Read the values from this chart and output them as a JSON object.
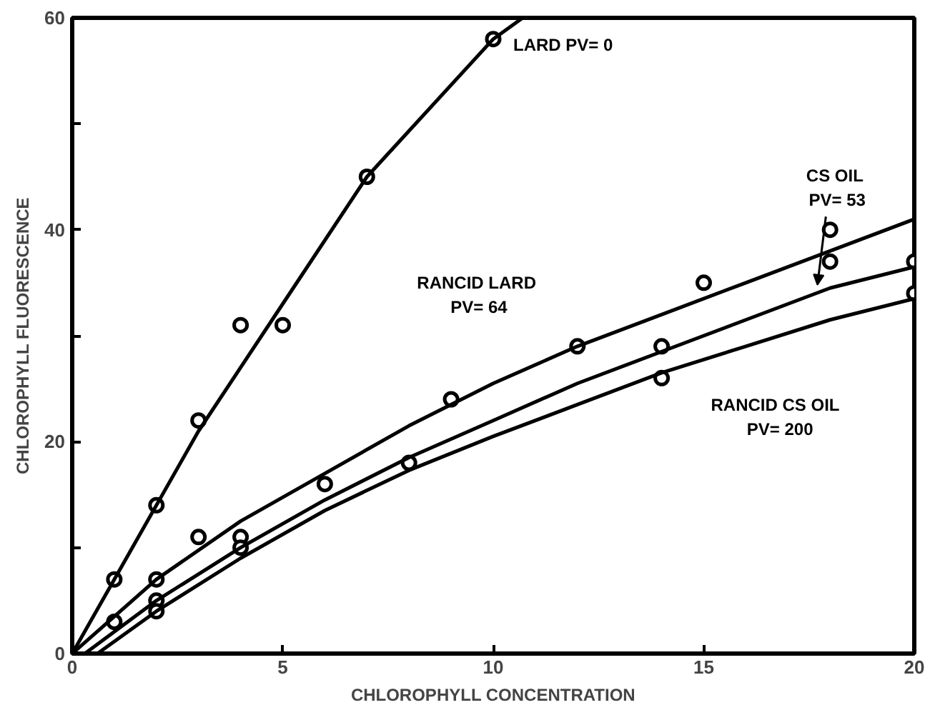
{
  "chart_data": {
    "type": "scatter",
    "xlabel": "CHLOROPHYLL CONCENTRATION",
    "ylabel": "CHLOROPHYLL FLUORESCENCE",
    "xlim": [
      0,
      20
    ],
    "ylim": [
      0,
      60
    ],
    "xticks": [
      0,
      5,
      10,
      15,
      20
    ],
    "yticks": [
      0,
      {
        "value": 10,
        "label": null
      },
      20,
      {
        "value": 30,
        "label": null
      },
      40,
      {
        "value": 50,
        "label": null
      },
      60
    ],
    "grid": false,
    "series": [
      {
        "color": "#000000",
        "marker": "circle",
        "x": [
          1,
          2,
          3,
          4,
          5,
          7,
          10
        ],
        "values": [
          7,
          14,
          22,
          31,
          31,
          45,
          58
        ]
      },
      {
        "color": "#000000",
        "marker": "circle",
        "x": [
          1,
          2,
          3,
          6,
          9,
          12,
          15,
          18
        ],
        "values": [
          3,
          7,
          11,
          16,
          24,
          29,
          35,
          40
        ]
      },
      {
        "color": "#000000",
        "marker": "circle",
        "x": [
          2,
          4,
          8,
          14,
          18,
          20
        ],
        "values": [
          5,
          11,
          18,
          29,
          37,
          37
        ]
      },
      {
        "color": "#000000",
        "marker": "circle",
        "x": [
          2,
          4,
          14,
          20
        ],
        "values": [
          4,
          10,
          26,
          34
        ]
      },
      {
        "type": "line",
        "name": "LARD  PV= 0",
        "color": "#000000",
        "x": [
          0,
          1,
          3,
          5,
          7,
          10,
          10.7
        ],
        "values": [
          0,
          7,
          21,
          33,
          45,
          58,
          60
        ]
      },
      {
        "type": "line",
        "name": "RANCID  LARD\nPV= 64",
        "color": "#000000",
        "x": [
          0,
          1,
          2,
          4,
          6,
          8,
          10,
          12,
          14,
          16,
          18,
          20
        ],
        "values": [
          0,
          3.5,
          7,
          12.5,
          17,
          21.5,
          25.5,
          29,
          32,
          35,
          38,
          41
        ]
      },
      {
        "type": "line",
        "name": "CS  OIL\nPV= 53",
        "color": "#000000",
        "x": [
          0.3,
          2,
          4,
          6,
          8,
          10,
          12,
          14,
          16,
          18,
          20
        ],
        "values": [
          0,
          5,
          10,
          14.5,
          18.5,
          22,
          25.5,
          28.5,
          31.5,
          34.5,
          36.5
        ]
      },
      {
        "type": "line",
        "name": "RANCID  CS  OIL\nPV= 200",
        "color": "#000000",
        "x": [
          0.6,
          2,
          4,
          6,
          8,
          10,
          12,
          14,
          16,
          18,
          20
        ],
        "values": [
          0,
          4,
          9,
          13.5,
          17.3,
          20.5,
          23.5,
          26.5,
          29,
          31.5,
          33.5
        ]
      }
    ]
  }
}
